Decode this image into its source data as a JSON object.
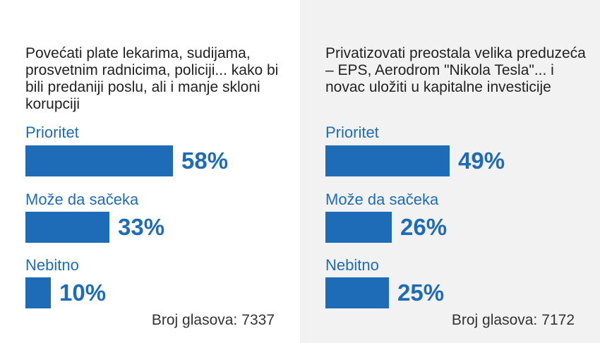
{
  "colors": {
    "accent": "#1e6bb8",
    "left_bg": "#ffffff",
    "right_bg": "#f2f2f2"
  },
  "chart_data": [
    {
      "type": "bar",
      "orientation": "horizontal",
      "title": "Povećati plate lekarima, sudijama, prosvetnim radnicima, policiji... kako bi bili predaniji poslu, ali i manje skloni korupciji",
      "categories": [
        "Prioritet",
        "Može da sačeka",
        "Nebitno"
      ],
      "values": [
        58,
        33,
        10
      ],
      "value_labels": [
        "58%",
        "33%",
        "10%"
      ],
      "unit": "%",
      "xlim": [
        0,
        100
      ],
      "votes_label": "Broj glasova:",
      "votes": "7337"
    },
    {
      "type": "bar",
      "orientation": "horizontal",
      "title": "Privatizovati preostala velika preduzeća – EPS, Aerodrom \"Nikola Tesla\"... i novac uložiti u kapitalne investicije",
      "categories": [
        "Prioritet",
        "Može da sačeka",
        "Nebitno"
      ],
      "values": [
        49,
        26,
        25
      ],
      "value_labels": [
        "49%",
        "26%",
        "25%"
      ],
      "unit": "%",
      "xlim": [
        0,
        100
      ],
      "votes_label": "Broj glasova:",
      "votes": "7172"
    }
  ]
}
